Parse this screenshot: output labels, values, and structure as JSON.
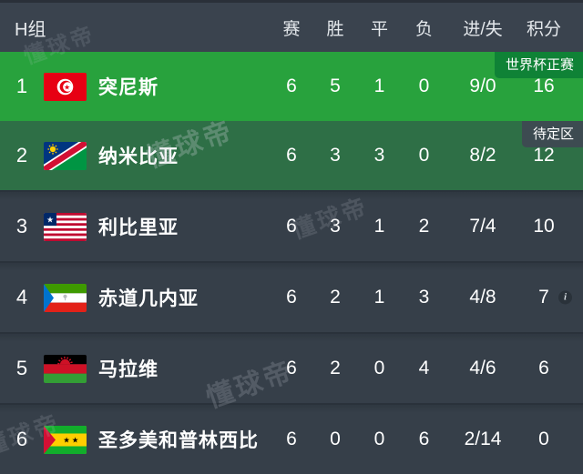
{
  "header": {
    "group": "H组",
    "columns": [
      "赛",
      "胜",
      "平",
      "负",
      "进/失",
      "积分"
    ]
  },
  "rows": [
    {
      "rank": "1",
      "team": "突尼斯",
      "flag": "tunisia",
      "status": "qualified",
      "badge": "世界杯正赛",
      "played": "6",
      "won": "5",
      "drawn": "1",
      "lost": "0",
      "goals": "9/0",
      "points": "16",
      "info": false
    },
    {
      "rank": "2",
      "team": "纳米比亚",
      "flag": "namibia",
      "status": "pending",
      "badge": "待定区",
      "played": "6",
      "won": "3",
      "drawn": "3",
      "lost": "0",
      "goals": "8/2",
      "points": "12",
      "info": false
    },
    {
      "rank": "3",
      "team": "利比里亚",
      "flag": "liberia",
      "status": "normal",
      "badge": "",
      "played": "6",
      "won": "3",
      "drawn": "1",
      "lost": "2",
      "goals": "7/4",
      "points": "10",
      "info": false
    },
    {
      "rank": "4",
      "team": "赤道几内亚",
      "flag": "eq-guinea",
      "status": "normal",
      "badge": "",
      "played": "6",
      "won": "2",
      "drawn": "1",
      "lost": "3",
      "goals": "4/8",
      "points": "7",
      "info": true
    },
    {
      "rank": "5",
      "team": "马拉维",
      "flag": "malawi",
      "status": "normal",
      "badge": "",
      "played": "6",
      "won": "2",
      "drawn": "0",
      "lost": "4",
      "goals": "4/6",
      "points": "6",
      "info": false
    },
    {
      "rank": "6",
      "team": "圣多美和普林西比",
      "flag": "sao-tome",
      "status": "normal",
      "badge": "",
      "played": "6",
      "won": "0",
      "drawn": "0",
      "lost": "6",
      "goals": "2/14",
      "points": "0",
      "info": false
    }
  ],
  "icons": {
    "info_glyph": "i"
  },
  "watermark": "懂球帝",
  "colors": {
    "qualified_green": "#28a23d",
    "qualified_badge_green": "#0f8236",
    "pending_green": "#2e6f46",
    "pending_badge": "#3d4b51",
    "dark_row": "#363f49",
    "header_bg": "#3a434e"
  }
}
